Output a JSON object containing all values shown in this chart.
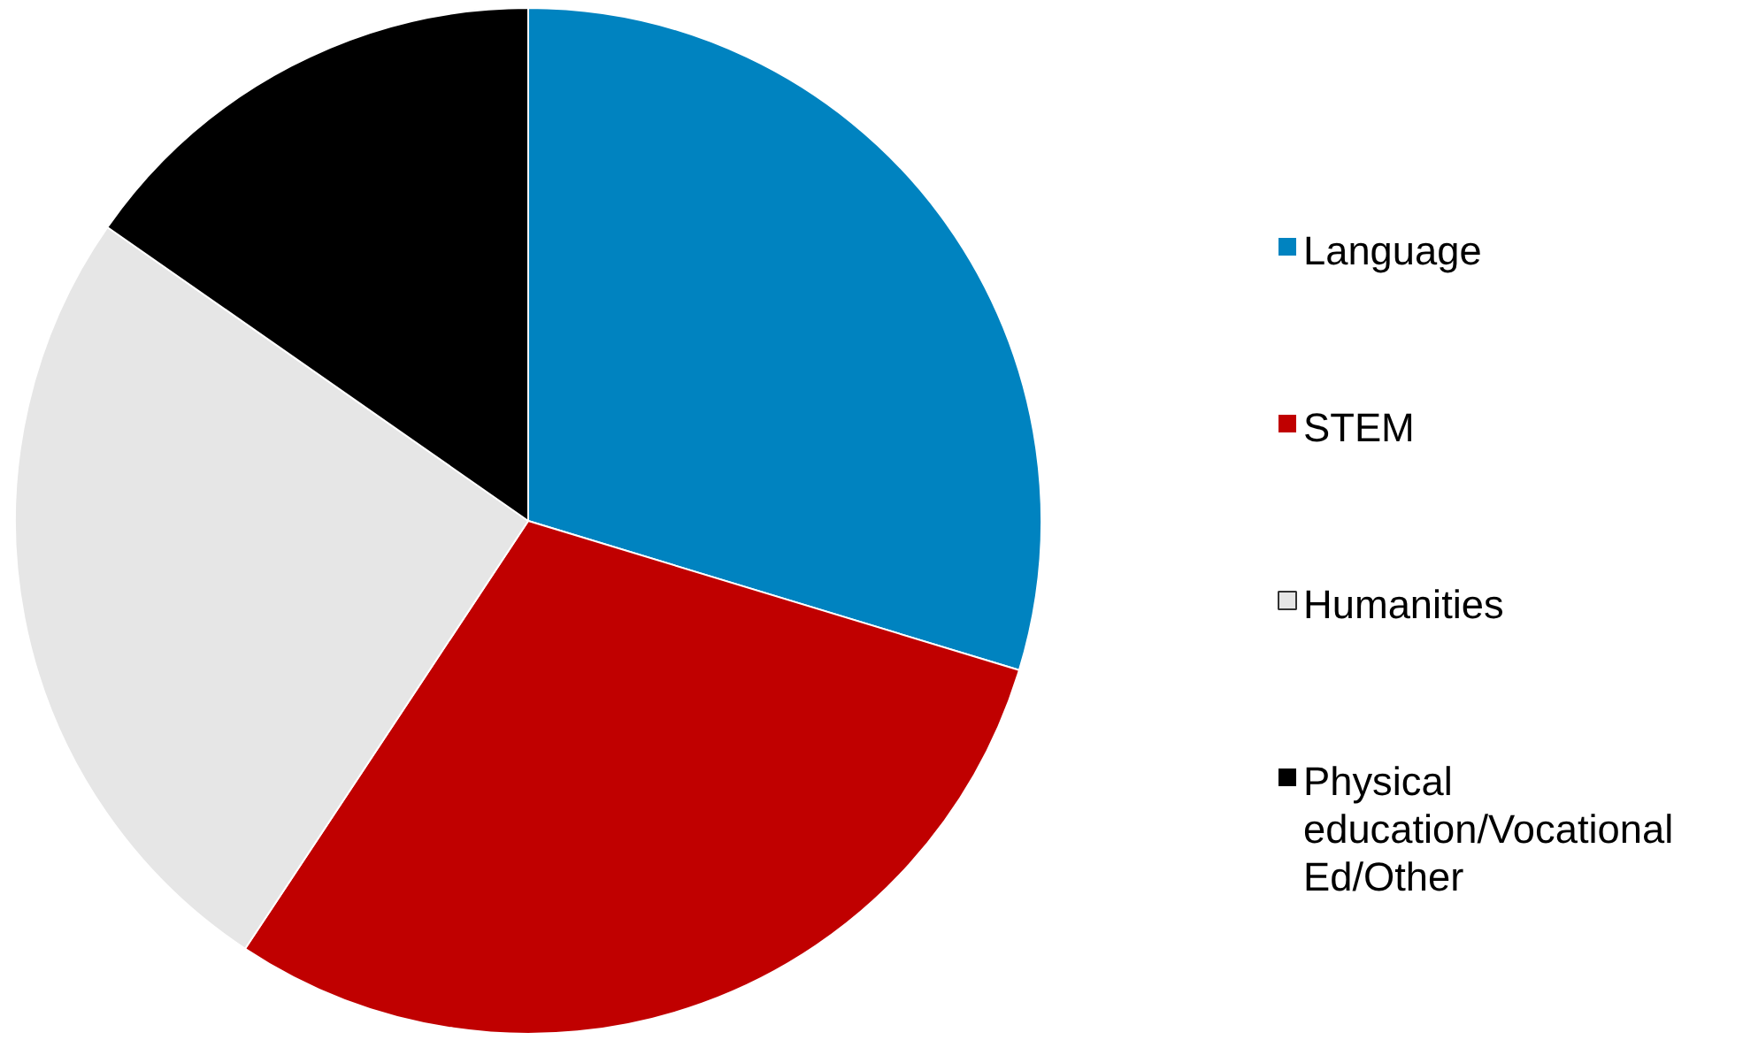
{
  "chart_data": {
    "type": "pie",
    "categories": [
      "Language",
      "STEM",
      "Humanities",
      "Physical education/Vocational Ed/Other"
    ],
    "values": [
      29.7,
      29.6,
      25.4,
      15.3
    ],
    "colors": [
      "#0083c0",
      "#c00000",
      "#e6e6e6",
      "#000000"
    ],
    "legend": "right"
  }
}
